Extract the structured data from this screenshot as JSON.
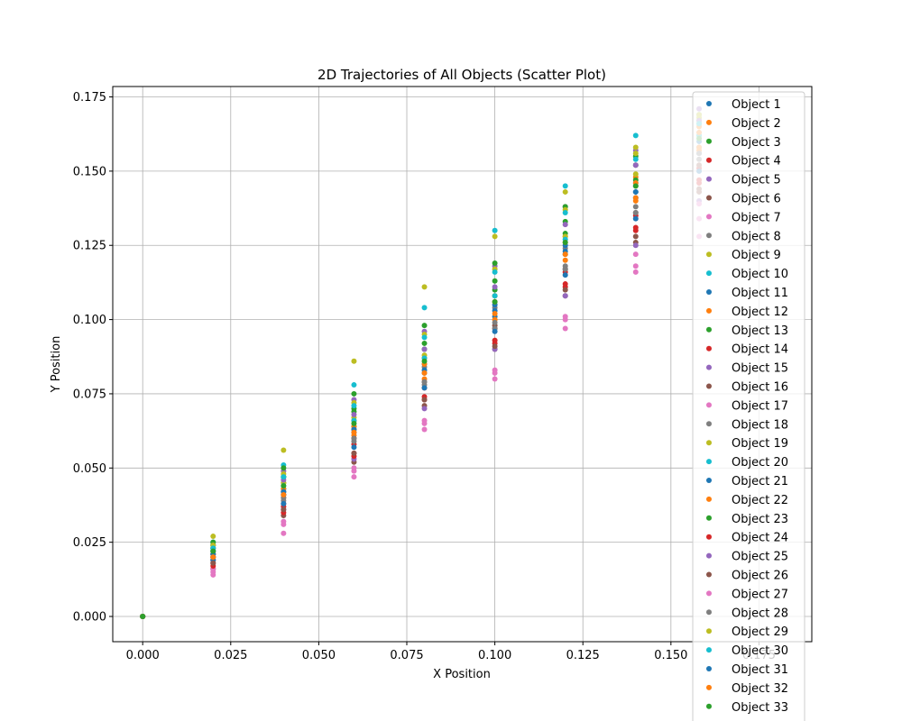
{
  "chart_data": {
    "type": "scatter",
    "title": "2D Trajectories of All Objects (Scatter Plot)",
    "xlabel": "X Position",
    "ylabel": "Y Position",
    "xlim": [
      -0.0085,
      0.19
    ],
    "ylim": [
      -0.0085,
      0.1785
    ],
    "x_ticks": [
      0.0,
      0.025,
      0.05,
      0.075,
      0.1,
      0.125,
      0.15,
      0.175
    ],
    "x_tick_labels": [
      "0.000",
      "0.025",
      "0.050",
      "0.075",
      "0.100",
      "0.125",
      "0.150",
      "0.175"
    ],
    "y_ticks": [
      0.0,
      0.025,
      0.05,
      0.075,
      0.1,
      0.125,
      0.15,
      0.175
    ],
    "y_tick_labels": [
      "0.000",
      "0.025",
      "0.050",
      "0.075",
      "0.100",
      "0.125",
      "0.150",
      "0.175"
    ],
    "grid": true,
    "legend_position": "top-right",
    "series": [
      {
        "name": "Object 1",
        "color": "#1f77b4",
        "x": [
          0.0,
          0.02,
          0.04,
          0.06,
          0.08,
          0.1,
          0.12,
          0.14,
          0.158
        ],
        "y": [
          0.0,
          0.02,
          0.041,
          0.062,
          0.082,
          0.101,
          0.122,
          0.141,
          0.158
        ]
      },
      {
        "name": "Object 2",
        "color": "#ff7f0e",
        "x": [
          0.0,
          0.02,
          0.04,
          0.06,
          0.08,
          0.1,
          0.12,
          0.14,
          0.158
        ],
        "y": [
          0.0,
          0.022,
          0.045,
          0.066,
          0.087,
          0.108,
          0.128,
          0.148,
          0.165
        ]
      },
      {
        "name": "Object 3",
        "color": "#2ca02c",
        "x": [
          0.0,
          0.02,
          0.04,
          0.06,
          0.08,
          0.1,
          0.12,
          0.14,
          0.158
        ],
        "y": [
          0.0,
          0.023,
          0.047,
          0.069,
          0.09,
          0.11,
          0.129,
          0.147,
          0.162
        ]
      },
      {
        "name": "Object 4",
        "color": "#d62728",
        "x": [
          0.0,
          0.02,
          0.04,
          0.06,
          0.08,
          0.1,
          0.12,
          0.14,
          0.158
        ],
        "y": [
          0.0,
          0.019,
          0.038,
          0.058,
          0.077,
          0.097,
          0.116,
          0.135,
          0.151
        ]
      },
      {
        "name": "Object 5",
        "color": "#9467bd",
        "x": [
          0.0,
          0.02,
          0.04,
          0.06,
          0.08,
          0.1,
          0.12,
          0.14,
          0.158
        ],
        "y": [
          0.0,
          0.024,
          0.049,
          0.073,
          0.096,
          0.118,
          0.138,
          0.157,
          0.171
        ]
      },
      {
        "name": "Object 6",
        "color": "#8c564b",
        "x": [
          0.0,
          0.02,
          0.04,
          0.06,
          0.08,
          0.1,
          0.12,
          0.14,
          0.158
        ],
        "y": [
          0.0,
          0.016,
          0.034,
          0.052,
          0.071,
          0.09,
          0.108,
          0.126,
          0.143
        ]
      },
      {
        "name": "Object 7",
        "color": "#e377c2",
        "x": [
          0.0,
          0.02,
          0.04,
          0.06,
          0.08,
          0.1,
          0.12,
          0.14,
          0.158
        ],
        "y": [
          0.0,
          0.016,
          0.032,
          0.05,
          0.066,
          0.083,
          0.1,
          0.118,
          0.134
        ]
      },
      {
        "name": "Object 8",
        "color": "#7f7f7f",
        "x": [
          0.0,
          0.02,
          0.04,
          0.06,
          0.08,
          0.1,
          0.12,
          0.14,
          0.158
        ],
        "y": [
          0.0,
          0.021,
          0.042,
          0.063,
          0.084,
          0.104,
          0.124,
          0.145,
          0.163
        ]
      },
      {
        "name": "Object 9",
        "color": "#bcbd22",
        "x": [
          0.0,
          0.02,
          0.04,
          0.06,
          0.08,
          0.1,
          0.12,
          0.14,
          0.158
        ],
        "y": [
          0.0,
          0.027,
          0.056,
          0.086,
          0.111,
          0.128,
          0.143,
          0.158,
          0.168
        ]
      },
      {
        "name": "Object 10",
        "color": "#17becf",
        "x": [
          0.0,
          0.02,
          0.04,
          0.06,
          0.08,
          0.1,
          0.12,
          0.14,
          0.158
        ],
        "y": [
          0.0,
          0.025,
          0.051,
          0.078,
          0.104,
          0.13,
          0.145,
          0.162,
          0.169
        ]
      },
      {
        "name": "Object 11",
        "color": "#1f77b4",
        "x": [
          0.0,
          0.02,
          0.04,
          0.06,
          0.08,
          0.1,
          0.12,
          0.14,
          0.158
        ],
        "y": [
          0.0,
          0.022,
          0.043,
          0.064,
          0.085,
          0.105,
          0.125,
          0.143,
          0.156
        ]
      },
      {
        "name": "Object 12",
        "color": "#ff7f0e",
        "x": [
          0.0,
          0.02,
          0.04,
          0.06,
          0.08,
          0.1,
          0.12,
          0.14,
          0.158
        ],
        "y": [
          0.0,
          0.02,
          0.04,
          0.061,
          0.08,
          0.1,
          0.12,
          0.14,
          0.157
        ]
      },
      {
        "name": "Object 13",
        "color": "#2ca02c",
        "x": [
          0.0,
          0.02,
          0.04,
          0.06,
          0.08,
          0.1,
          0.12,
          0.14,
          0.158
        ],
        "y": [
          0.0,
          0.025,
          0.05,
          0.075,
          0.098,
          0.119,
          0.138,
          0.155,
          0.167
        ]
      },
      {
        "name": "Object 14",
        "color": "#d62728",
        "x": [
          0.0,
          0.02,
          0.04,
          0.06,
          0.08,
          0.1,
          0.12,
          0.14,
          0.158
        ],
        "y": [
          0.0,
          0.018,
          0.037,
          0.055,
          0.074,
          0.093,
          0.112,
          0.131,
          0.147
        ]
      },
      {
        "name": "Object 15",
        "color": "#9467bd",
        "x": [
          0.0,
          0.02,
          0.04,
          0.06,
          0.08,
          0.1,
          0.12,
          0.14,
          0.158
        ],
        "y": [
          0.0,
          0.019,
          0.036,
          0.053,
          0.07,
          0.09,
          0.108,
          0.125,
          0.14
        ]
      },
      {
        "name": "Object 16",
        "color": "#8c564b",
        "x": [
          0.0,
          0.02,
          0.04,
          0.06,
          0.08,
          0.1,
          0.12,
          0.14,
          0.158
        ],
        "y": [
          0.0,
          0.021,
          0.041,
          0.06,
          0.079,
          0.098,
          0.117,
          0.136,
          0.152
        ]
      },
      {
        "name": "Object 17",
        "color": "#e377c2",
        "x": [
          0.0,
          0.02,
          0.04,
          0.06,
          0.08,
          0.1,
          0.12,
          0.14,
          0.158
        ],
        "y": [
          0.0,
          0.014,
          0.028,
          0.049,
          0.065,
          0.082,
          0.101,
          0.122,
          0.139
        ]
      },
      {
        "name": "Object 18",
        "color": "#7f7f7f",
        "x": [
          0.0,
          0.02,
          0.04,
          0.06,
          0.08,
          0.1,
          0.12,
          0.14,
          0.158
        ],
        "y": [
          0.0,
          0.02,
          0.039,
          0.059,
          0.078,
          0.097,
          0.117,
          0.136,
          0.154
        ]
      },
      {
        "name": "Object 19",
        "color": "#bcbd22",
        "x": [
          0.0,
          0.02,
          0.04,
          0.06,
          0.08,
          0.1,
          0.12,
          0.14,
          0.158
        ],
        "y": [
          0.0,
          0.023,
          0.045,
          0.067,
          0.088,
          0.108,
          0.128,
          0.149,
          0.166
        ]
      },
      {
        "name": "Object 20",
        "color": "#17becf",
        "x": [
          0.0,
          0.02,
          0.04,
          0.06,
          0.08,
          0.1,
          0.12,
          0.14,
          0.158
        ],
        "y": [
          0.0,
          0.022,
          0.044,
          0.066,
          0.087,
          0.108,
          0.127,
          0.146,
          0.162
        ]
      },
      {
        "name": "Object 21",
        "color": "#1f77b4",
        "x": [
          0.0,
          0.02,
          0.04,
          0.06,
          0.08,
          0.1,
          0.12,
          0.14,
          0.158
        ],
        "y": [
          0.0,
          0.019,
          0.038,
          0.057,
          0.077,
          0.096,
          0.115,
          0.134,
          0.15
        ]
      },
      {
        "name": "Object 22",
        "color": "#ff7f0e",
        "x": [
          0.0,
          0.02,
          0.04,
          0.06,
          0.08,
          0.1,
          0.12,
          0.14,
          0.158
        ],
        "y": [
          0.0,
          0.021,
          0.043,
          0.064,
          0.085,
          0.106,
          0.126,
          0.146,
          0.163
        ]
      },
      {
        "name": "Object 23",
        "color": "#2ca02c",
        "x": [
          0.0,
          0.02,
          0.04,
          0.06,
          0.08,
          0.1,
          0.12,
          0.14,
          0.158
        ],
        "y": [
          0.0,
          0.024,
          0.047,
          0.07,
          0.092,
          0.113,
          0.133,
          0.152,
          0.166
        ]
      },
      {
        "name": "Object 24",
        "color": "#d62728",
        "x": [
          0.0,
          0.02,
          0.04,
          0.06,
          0.08,
          0.1,
          0.12,
          0.14,
          0.158
        ],
        "y": [
          0.0,
          0.017,
          0.035,
          0.054,
          0.073,
          0.092,
          0.111,
          0.13,
          0.146
        ]
      },
      {
        "name": "Object 25",
        "color": "#9467bd",
        "x": [
          0.0,
          0.02,
          0.04,
          0.06,
          0.08,
          0.1,
          0.12,
          0.14,
          0.158
        ],
        "y": [
          0.0,
          0.023,
          0.046,
          0.068,
          0.09,
          0.111,
          0.132,
          0.152,
          0.167
        ]
      },
      {
        "name": "Object 26",
        "color": "#8c564b",
        "x": [
          0.0,
          0.02,
          0.04,
          0.06,
          0.08,
          0.1,
          0.12,
          0.14,
          0.158
        ],
        "y": [
          0.0,
          0.018,
          0.036,
          0.055,
          0.073,
          0.091,
          0.11,
          0.128,
          0.144
        ]
      },
      {
        "name": "Object 27",
        "color": "#e377c2",
        "x": [
          0.0,
          0.02,
          0.04,
          0.06,
          0.08,
          0.1,
          0.12,
          0.14,
          0.158
        ],
        "y": [
          0.0,
          0.015,
          0.031,
          0.047,
          0.063,
          0.08,
          0.097,
          0.116,
          0.128
        ]
      },
      {
        "name": "Object 28",
        "color": "#7f7f7f",
        "x": [
          0.0,
          0.02,
          0.04,
          0.06,
          0.08,
          0.1,
          0.12,
          0.14,
          0.158
        ],
        "y": [
          0.0,
          0.02,
          0.04,
          0.06,
          0.079,
          0.099,
          0.118,
          0.138,
          0.156
        ]
      },
      {
        "name": "Object 29",
        "color": "#bcbd22",
        "x": [
          0.0,
          0.02,
          0.04,
          0.06,
          0.08,
          0.1,
          0.12,
          0.14,
          0.158
        ],
        "y": [
          0.0,
          0.024,
          0.048,
          0.072,
          0.095,
          0.117,
          0.137,
          0.156,
          0.169
        ]
      },
      {
        "name": "Object 30",
        "color": "#17becf",
        "x": [
          0.0,
          0.02,
          0.04,
          0.06,
          0.08,
          0.1,
          0.12,
          0.14,
          0.158
        ],
        "y": [
          0.0,
          0.023,
          0.047,
          0.071,
          0.094,
          0.116,
          0.136,
          0.154,
          0.166
        ]
      },
      {
        "name": "Object 31",
        "color": "#1f77b4",
        "x": [
          0.0,
          0.02,
          0.04,
          0.06,
          0.08,
          0.1,
          0.12,
          0.14,
          0.158
        ],
        "y": [
          0.0,
          0.021,
          0.042,
          0.063,
          0.083,
          0.103,
          0.123,
          0.143,
          0.16
        ]
      },
      {
        "name": "Object 32",
        "color": "#ff7f0e",
        "x": [
          0.0,
          0.02,
          0.04,
          0.06,
          0.08,
          0.1,
          0.12,
          0.14,
          0.158
        ],
        "y": [
          0.0,
          0.02,
          0.041,
          0.062,
          0.082,
          0.102,
          0.122,
          0.141,
          0.158
        ]
      },
      {
        "name": "Object 33",
        "color": "#2ca02c",
        "x": [
          0.0,
          0.02,
          0.04,
          0.06,
          0.08,
          0.1,
          0.12,
          0.14,
          0.158
        ],
        "y": [
          0.0,
          0.022,
          0.044,
          0.065,
          0.086,
          0.106,
          0.126,
          0.145,
          0.161
        ]
      }
    ]
  }
}
